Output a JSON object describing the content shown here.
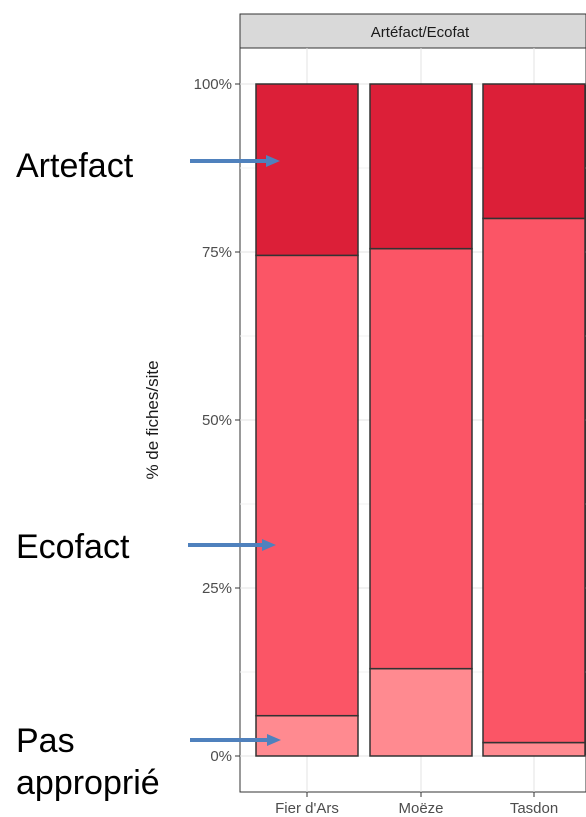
{
  "chart_data": {
    "type": "bar",
    "stacked": true,
    "percent": true,
    "facet_label": "Artéfact/Ecofat",
    "ylabel": "% de fiches/site",
    "xlabel": "",
    "ylim": [
      0,
      1
    ],
    "yticks": [
      {
        "value": 0,
        "label": "0%"
      },
      {
        "value": 0.25,
        "label": "25%"
      },
      {
        "value": 0.5,
        "label": "50%"
      },
      {
        "value": 0.75,
        "label": "75%"
      },
      {
        "value": 1,
        "label": "100%"
      }
    ],
    "categories": [
      "Fier d'Ars",
      "Moëze",
      "Tasdon"
    ],
    "series": [
      {
        "key": "pas",
        "color": "#ff8a90",
        "values": [
          0.06,
          0.13,
          0.02
        ]
      },
      {
        "key": "ecofact",
        "color": "#fb5566",
        "values": [
          0.685,
          0.625,
          0.78
        ]
      },
      {
        "key": "artefact",
        "color": "#dc1f38",
        "values": [
          0.255,
          0.245,
          0.2
        ]
      }
    ],
    "grid": true,
    "legend": "none",
    "annotations": [
      {
        "lines": [
          "Artefact"
        ],
        "points_to": "artefact",
        "color": "#4f81bd"
      },
      {
        "lines": [
          "Ecofact"
        ],
        "points_to": "ecofact",
        "color": "#4f81bd"
      },
      {
        "lines": [
          "Pas",
          "approprié"
        ],
        "points_to": "pas",
        "color": "#4f81bd"
      }
    ]
  }
}
